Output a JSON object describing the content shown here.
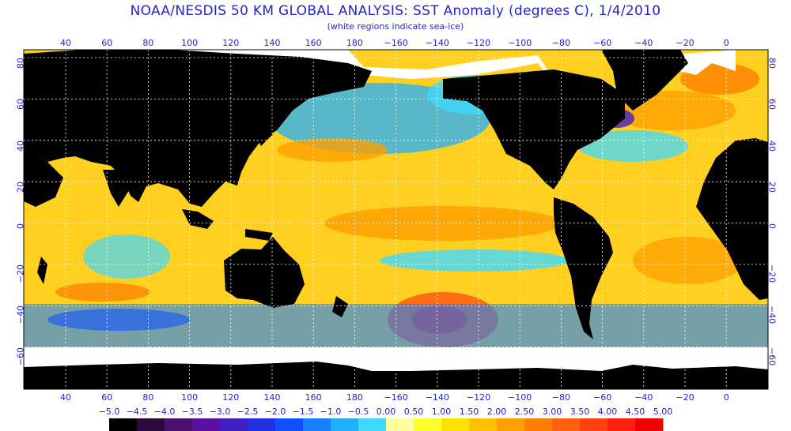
{
  "title": "NOAA/NESDIS 50 KM GLOBAL ANALYSIS: SST Anomaly (degrees C), 1/4/2010",
  "subtitle": "(white regions indicate sea-ice)",
  "lon_labels": [
    "40",
    "60",
    "80",
    "100",
    "120",
    "140",
    "160",
    "180",
    "−160",
    "−140",
    "−120",
    "−100",
    "−80",
    "−60",
    "−40",
    "−20",
    "0"
  ],
  "lat_labels_left": [
    "80",
    "60",
    "40",
    "20",
    "0",
    "−20",
    "−40",
    "−60"
  ],
  "lat_labels_right": [
    "80",
    "60",
    "40",
    "20",
    "0",
    "−20",
    "−40",
    "−60"
  ],
  "colorbar": {
    "labels": [
      "−5.0",
      "−4.5",
      "−4.0",
      "−3.5",
      "−3.0",
      "−2.5",
      "−2.0",
      "−1.5",
      "−1.0",
      "−0.5",
      "0.00",
      "0.50",
      "1.00",
      "1.50",
      "2.00",
      "2.50",
      "3.00",
      "3.50",
      "4.00",
      "4.50",
      "5.00"
    ],
    "colors": [
      "#000000",
      "#2a0a3a",
      "#4a1070",
      "#5a10a0",
      "#4020c0",
      "#2030e0",
      "#1050ff",
      "#1a80ff",
      "#20b0ff",
      "#40d8ff",
      "#ffffa0",
      "#ffff30",
      "#ffe000",
      "#ffc000",
      "#ffa000",
      "#ff8000",
      "#ff6010",
      "#ff4010",
      "#ff2010",
      "#f00000"
    ]
  },
  "colors": {
    "land": "#000000",
    "ice": "#ffffff",
    "ocean_base": "#ffd020",
    "grid": "#ffffff",
    "text": "#2424c8"
  }
}
